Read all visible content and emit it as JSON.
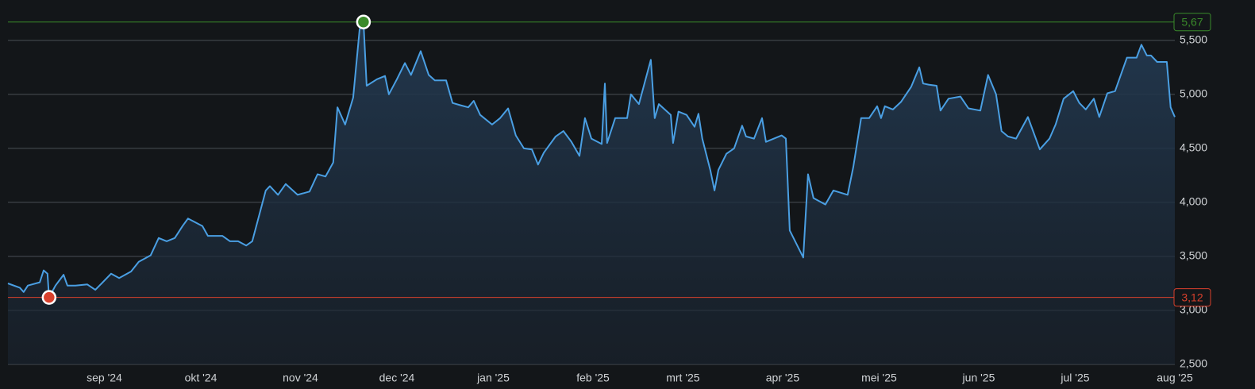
{
  "chart_data": {
    "type": "line",
    "color": "#4a9fe3",
    "x": [
      0,
      3.7,
      4.9,
      6.2,
      9.9,
      11.1,
      12.3,
      12.8,
      14.8,
      17.3,
      18.5,
      21.0,
      24.7,
      27.2,
      32.1,
      34.6,
      38.3,
      40.7,
      44.4,
      46.9,
      49.4,
      51.9,
      54.3,
      56.0,
      60.5,
      62.2,
      66.7,
      69.1,
      71.6,
      74.1,
      76.0,
      80.2,
      81.5,
      84.0,
      86.4,
      90.1,
      93.8,
      96.3,
      98.8,
      101.2,
      102.5,
      104.9,
      107.4,
      109.4,
      110.6,
      111.6,
      114.8,
      117.3,
      118.5,
      121.0,
      123.5,
      125.4,
      128.4,
      130.9,
      132.8,
      136.3,
      138.3,
      140.7,
      143.2,
      144.9,
      146.9,
      150.6,
      153.1,
      155.6,
      158.0,
      160.5,
      163.0,
      164.9,
      166.7,
      170.4,
      172.8,
      175.3,
      177.8,
      179.5,
      181.5,
      184.7,
      185.7,
      186.4,
      188.9,
      192.6,
      193.8,
      196.3,
      200.0,
      201.2,
      202.5,
      206.2,
      206.9,
      208.6,
      211.1,
      213.6,
      214.8,
      216.0,
      218.5,
      219.8,
      221.0,
      223.5,
      225.9,
      228.4,
      229.6,
      232.1,
      234.6,
      235.8,
      240.7,
      242.0,
      243.2,
      247.4,
      248.9,
      250.6,
      254.3,
      256.8,
      261.2,
      263.0,
      265.4,
      267.9,
      270.4,
      271.6,
      272.8,
      275.3,
      277.8,
      281.0,
      283.5,
      284.7,
      286.4,
      288.9,
      290.1,
      292.6,
      296.3,
      298.8,
      302.5,
      304.9,
      307.4,
      309.1,
      311.1,
      313.6,
      317.3,
      321.0,
      324.0,
      325.9,
      328.4,
      331.4,
      333.3,
      335.3,
      337.8,
      339.5,
      342.0,
      344.4,
      348.1,
      351.1,
      352.6,
      354.3,
      355.6,
      357.5,
      360.5,
      361.7,
      363
    ],
    "values": [
      3.25,
      3.21,
      3.17,
      3.23,
      3.26,
      3.37,
      3.34,
      3.12,
      3.23,
      3.33,
      3.23,
      3.23,
      3.24,
      3.19,
      3.34,
      3.3,
      3.36,
      3.45,
      3.51,
      3.67,
      3.64,
      3.67,
      3.78,
      3.85,
      3.78,
      3.69,
      3.69,
      3.64,
      3.64,
      3.6,
      3.64,
      4.11,
      4.15,
      4.07,
      4.17,
      4.07,
      4.1,
      4.26,
      4.24,
      4.37,
      4.88,
      4.72,
      4.97,
      5.6,
      5.67,
      5.08,
      5.14,
      5.17,
      5.0,
      5.14,
      5.29,
      5.18,
      5.4,
      5.18,
      5.13,
      5.13,
      4.92,
      4.9,
      4.88,
      4.94,
      4.81,
      4.72,
      4.78,
      4.87,
      4.62,
      4.5,
      4.49,
      4.35,
      4.46,
      4.61,
      4.66,
      4.56,
      4.43,
      4.78,
      4.59,
      4.54,
      5.1,
      4.55,
      4.78,
      4.78,
      5.0,
      4.91,
      5.32,
      4.78,
      4.91,
      4.81,
      4.55,
      4.84,
      4.81,
      4.7,
      4.82,
      4.59,
      4.3,
      4.11,
      4.3,
      4.45,
      4.5,
      4.71,
      4.61,
      4.59,
      4.78,
      4.56,
      4.62,
      4.59,
      3.74,
      3.49,
      4.26,
      4.04,
      3.98,
      4.11,
      4.07,
      4.33,
      4.78,
      4.78,
      4.89,
      4.78,
      4.89,
      4.86,
      4.93,
      5.07,
      5.25,
      5.1,
      5.09,
      5.08,
      4.85,
      4.96,
      4.98,
      4.87,
      4.85,
      5.18,
      5.0,
      4.66,
      4.61,
      4.59,
      4.79,
      4.49,
      4.59,
      4.72,
      4.96,
      5.03,
      4.92,
      4.86,
      4.96,
      4.79,
      5.01,
      5.03,
      5.34,
      5.34,
      5.46,
      5.36,
      5.36,
      5.3,
      5.3,
      4.88,
      4.79
    ],
    "xlim": [
      0,
      363
    ],
    "xticks": [
      {
        "value": 30,
        "label": "sep '24"
      },
      {
        "value": 60,
        "label": "okt '24"
      },
      {
        "value": 91,
        "label": "nov '24"
      },
      {
        "value": 121,
        "label": "dec '24"
      },
      {
        "value": 151,
        "label": "jan '25"
      },
      {
        "value": 182,
        "label": "feb '25"
      },
      {
        "value": 210,
        "label": "mrt '25"
      },
      {
        "value": 241,
        "label": "apr '25"
      },
      {
        "value": 271,
        "label": "mei '25"
      },
      {
        "value": 302,
        "label": "jun '25"
      },
      {
        "value": 332,
        "label": "jul '25"
      },
      {
        "value": 363,
        "label": "aug '25"
      }
    ],
    "ylim": [
      2.5,
      5.8
    ],
    "yticks": [
      {
        "value": 2.5,
        "label": "2,500"
      },
      {
        "value": 3,
        "label": "3,000"
      },
      {
        "value": 3.5,
        "label": "3,500"
      },
      {
        "value": 4,
        "label": "4,000"
      },
      {
        "value": 4.5,
        "label": "4,500"
      },
      {
        "value": 5,
        "label": "5,000"
      },
      {
        "value": 5.5,
        "label": "5,500"
      }
    ],
    "grid": true,
    "max": {
      "value": 5.67,
      "label": "5,67",
      "color": "#3a8a2a"
    },
    "min": {
      "value": 3.12,
      "label": "3,12",
      "color": "#d9402c"
    }
  }
}
